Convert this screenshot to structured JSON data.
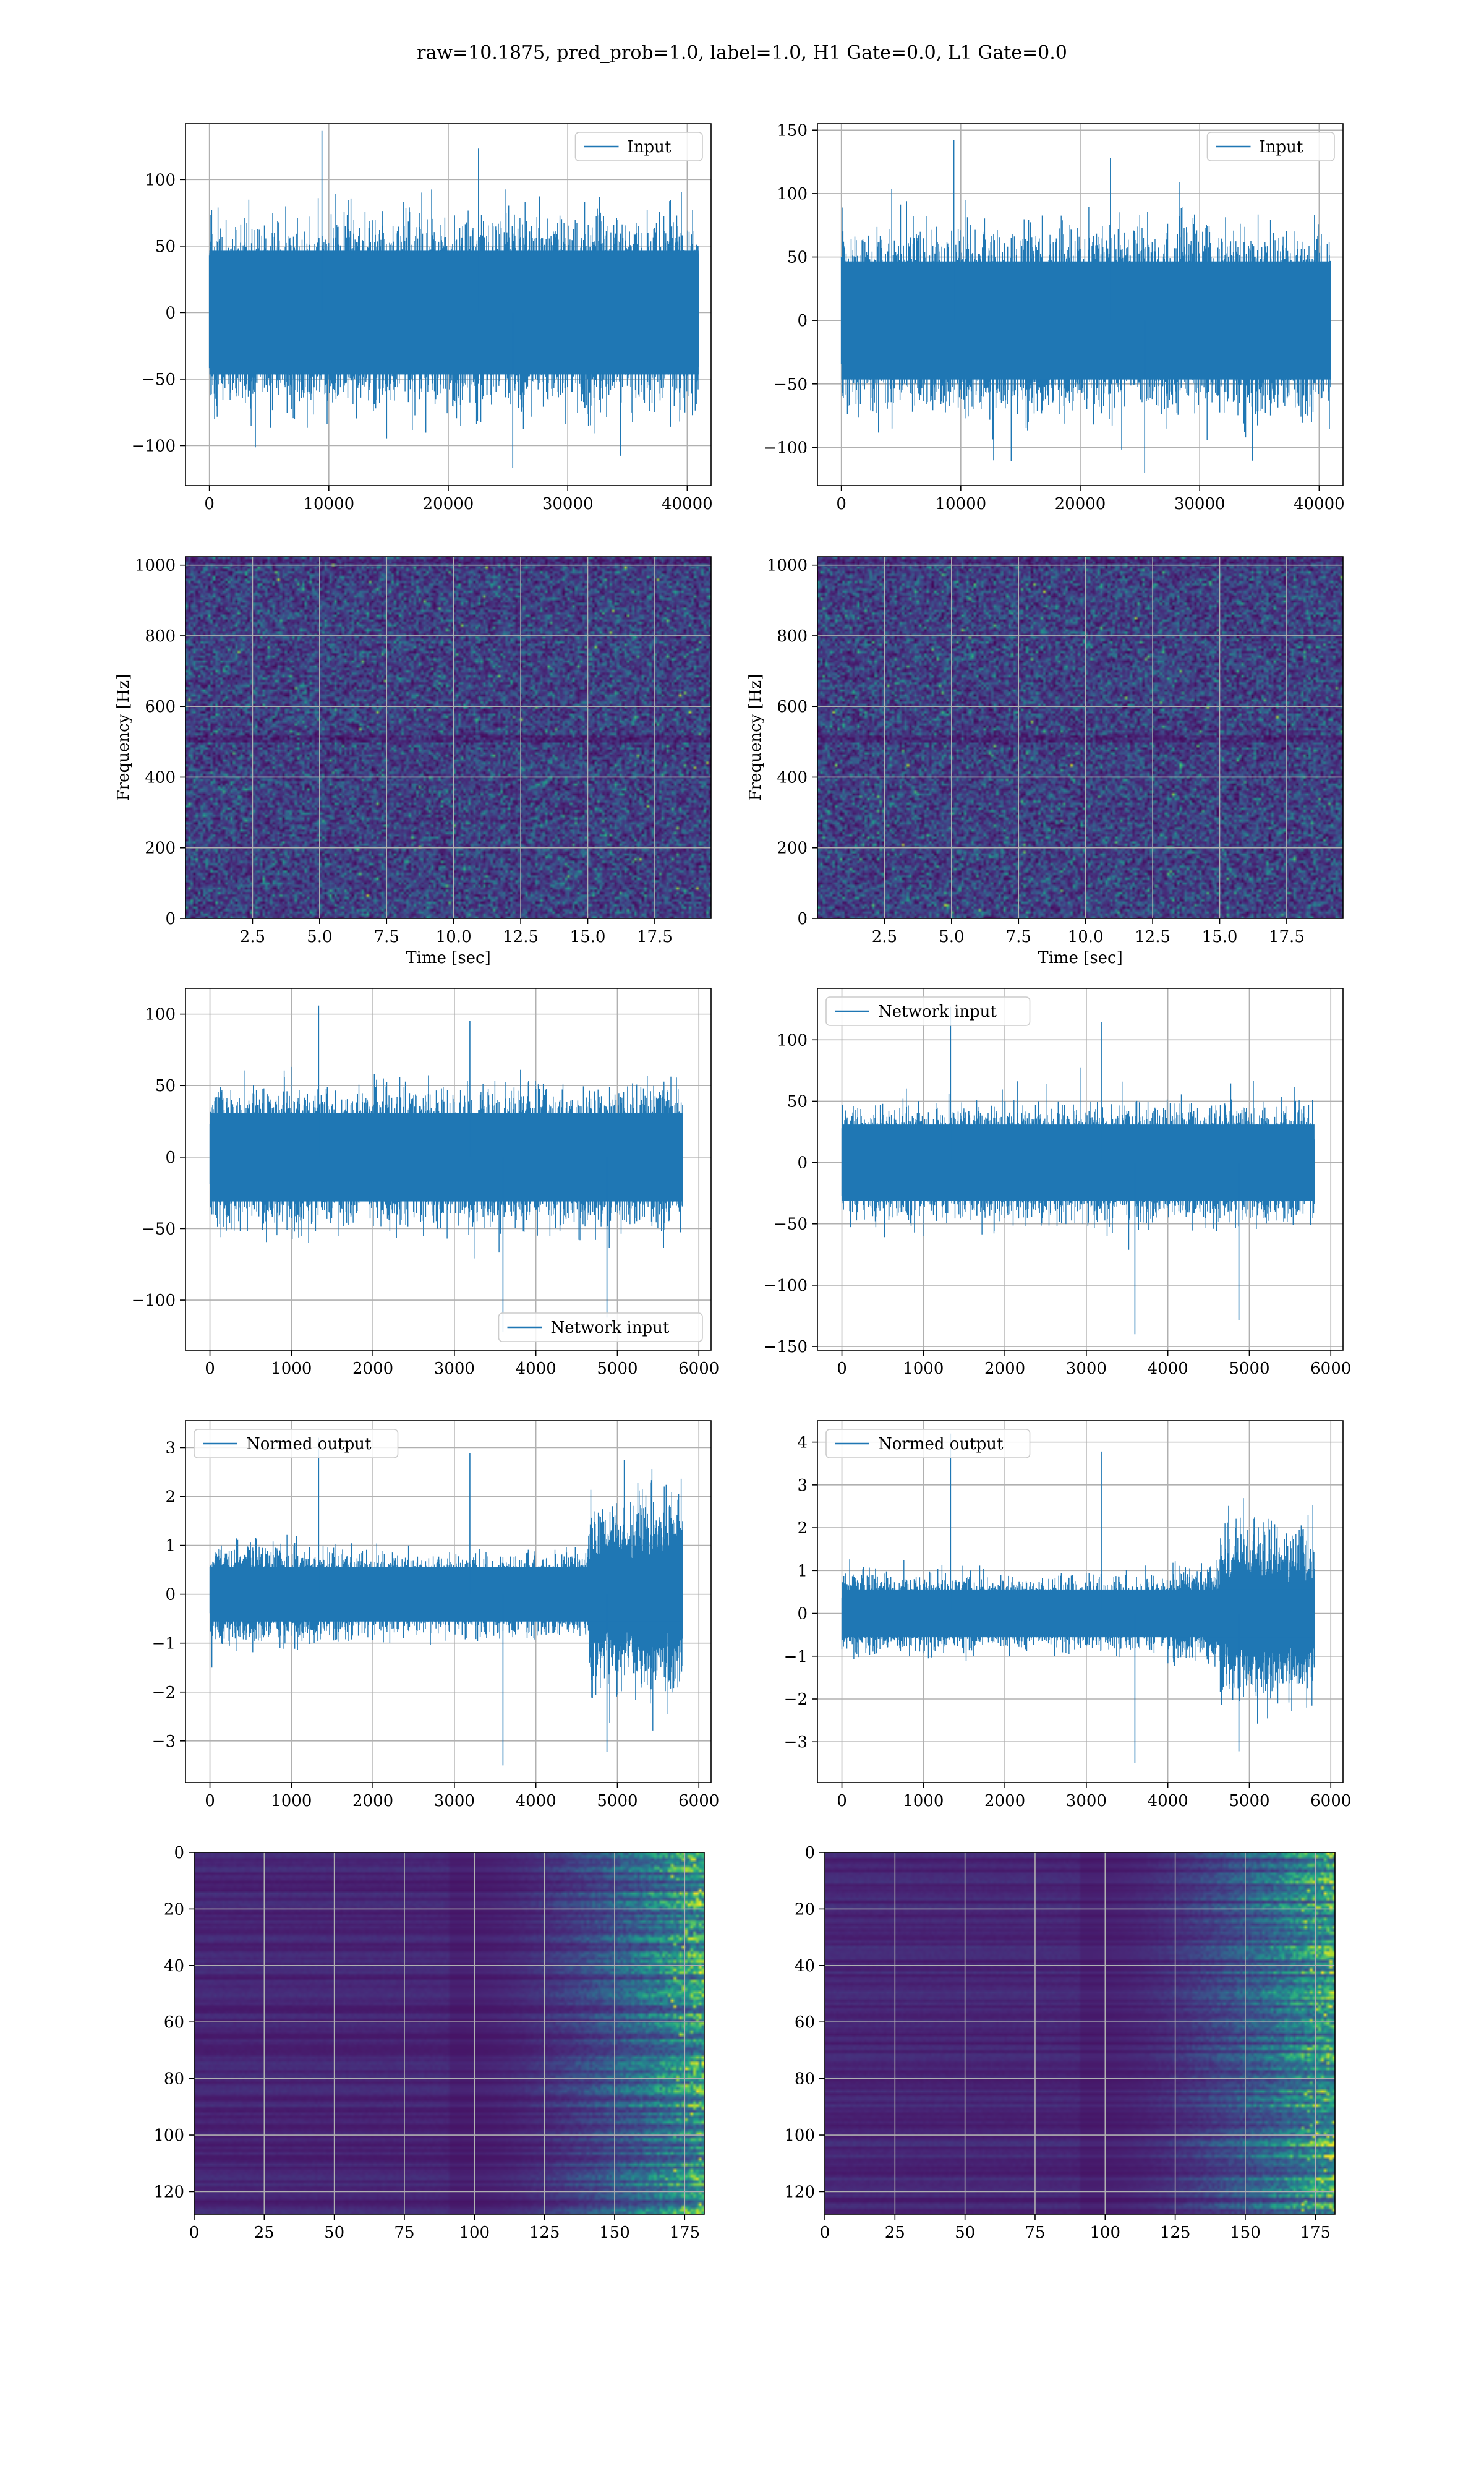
{
  "figure": {
    "title": "raw=10.1875, pred_prob=1.0, label=1.0, H1 Gate=0.0, L1 Gate=0.0",
    "colors": {
      "line": "#1f77b4",
      "viridis_low": "#440154",
      "viridis_mid": "#31688e",
      "viridis_hi": "#35b779",
      "viridis_top": "#fde725",
      "grid": "#b0b0b0"
    }
  },
  "chart_data": [
    {
      "id": "r1c1",
      "type": "line",
      "title": "",
      "xlabel": "",
      "ylabel": "",
      "legend": "Input",
      "legend_loc": "top-right",
      "xlim": [
        -2000,
        42000
      ],
      "ylim": [
        -130,
        142
      ],
      "xticks": [
        0,
        10000,
        20000,
        30000,
        40000
      ],
      "yticks": [
        -100,
        -50,
        0,
        50,
        100
      ],
      "signal": {
        "n": 40960,
        "x_max": 40960,
        "base": 75,
        "peak": 137,
        "trough": -117,
        "profile": [
          1,
          1,
          1,
          1,
          1,
          1,
          1,
          1,
          1,
          1
        ]
      }
    },
    {
      "id": "r1c2",
      "type": "line",
      "title": "",
      "xlabel": "",
      "ylabel": "",
      "legend": "Input",
      "legend_loc": "top-right",
      "xlim": [
        -2000,
        42000
      ],
      "ylim": [
        -130,
        155
      ],
      "xticks": [
        0,
        10000,
        20000,
        30000,
        40000
      ],
      "yticks": [
        -100,
        -50,
        0,
        50,
        100,
        150
      ],
      "signal": {
        "n": 40960,
        "x_max": 40960,
        "base": 75,
        "peak": 142,
        "trough": -120,
        "profile": [
          1,
          1,
          1,
          1,
          1,
          1,
          1,
          1,
          1,
          1
        ]
      }
    },
    {
      "id": "r2c1",
      "type": "heatmap",
      "title": "",
      "xlabel": "Time [sec]",
      "ylabel": "Frequency [Hz]",
      "xlim": [
        0,
        19.6
      ],
      "ylim": [
        0,
        1024
      ],
      "xticks": [
        2.5,
        5.0,
        7.5,
        10.0,
        12.5,
        15.0,
        17.5
      ],
      "yticks": [
        0,
        200,
        400,
        600,
        800,
        1000
      ],
      "tick_labels_x": [
        "2.5",
        "5.0",
        "7.5",
        "10.0",
        "12.5",
        "15.0",
        "17.5"
      ]
    },
    {
      "id": "r2c2",
      "type": "heatmap",
      "title": "",
      "xlabel": "Time [sec]",
      "ylabel": "Frequency [Hz]",
      "xlim": [
        0,
        19.6
      ],
      "ylim": [
        0,
        1024
      ],
      "xticks": [
        2.5,
        5.0,
        7.5,
        10.0,
        12.5,
        15.0,
        17.5
      ],
      "yticks": [
        0,
        200,
        400,
        600,
        800,
        1000
      ],
      "tick_labels_x": [
        "2.5",
        "5.0",
        "7.5",
        "10.0",
        "12.5",
        "15.0",
        "17.5"
      ]
    },
    {
      "id": "r3c1",
      "type": "line",
      "title": "",
      "xlabel": "",
      "ylabel": "",
      "legend": "Network input",
      "legend_loc": "bottom-right",
      "xlim": [
        -300,
        6150
      ],
      "ylim": [
        -135,
        118
      ],
      "xticks": [
        0,
        1000,
        2000,
        3000,
        4000,
        5000,
        6000
      ],
      "yticks": [
        -100,
        -50,
        0,
        50,
        100
      ],
      "signal": {
        "n": 5800,
        "x_max": 5800,
        "base": 50,
        "peak": 106,
        "trough": -122,
        "profile": [
          1,
          1,
          1,
          1,
          1,
          1,
          1,
          1,
          1,
          1
        ]
      }
    },
    {
      "id": "r3c2",
      "type": "line",
      "title": "",
      "xlabel": "",
      "ylabel": "",
      "legend": "Network input",
      "legend_loc": "top-left",
      "xlim": [
        -300,
        6150
      ],
      "ylim": [
        -153,
        142
      ],
      "xticks": [
        0,
        1000,
        2000,
        3000,
        4000,
        5000,
        6000
      ],
      "yticks": [
        -150,
        -100,
        -50,
        0,
        50,
        100
      ],
      "signal": {
        "n": 5800,
        "x_max": 5800,
        "base": 50,
        "peak": 127,
        "trough": -140,
        "profile": [
          1,
          1,
          1,
          1,
          1,
          1,
          1,
          1,
          1,
          1
        ]
      }
    },
    {
      "id": "r4c1",
      "type": "line",
      "title": "",
      "xlabel": "",
      "ylabel": "",
      "legend": "Normed output",
      "legend_loc": "top-left",
      "xlim": [
        -300,
        6150
      ],
      "ylim": [
        -3.85,
        3.55
      ],
      "xticks": [
        0,
        1000,
        2000,
        3000,
        4000,
        5000,
        6000
      ],
      "yticks": [
        -3,
        -2,
        -1,
        0,
        1,
        2,
        3
      ],
      "signal": {
        "n": 5800,
        "x_max": 5800,
        "base": 0.9,
        "peak": 3.2,
        "trough": -3.5,
        "profile": [
          1.2,
          1.15,
          1.05,
          0.95,
          0.9,
          0.9,
          0.95,
          1.0,
          2.2,
          2.4
        ]
      }
    },
    {
      "id": "r4c2",
      "type": "line",
      "title": "",
      "xlabel": "",
      "ylabel": "",
      "legend": "Normed output",
      "legend_loc": "top-left",
      "xlim": [
        -300,
        6150
      ],
      "ylim": [
        -3.95,
        4.5
      ],
      "xticks": [
        0,
        1000,
        2000,
        3000,
        4000,
        5000,
        6000
      ],
      "yticks": [
        -3,
        -2,
        -1,
        0,
        1,
        2,
        3,
        4
      ],
      "signal": {
        "n": 5800,
        "x_max": 5800,
        "base": 0.9,
        "peak": 4.2,
        "trough": -3.5,
        "profile": [
          1.1,
          1.05,
          1.0,
          0.95,
          0.95,
          0.95,
          1.0,
          1.3,
          2.3,
          2.3
        ]
      }
    },
    {
      "id": "r5c1",
      "type": "heatmap",
      "title": "",
      "xlabel": "",
      "ylabel": "",
      "xlim": [
        0,
        182
      ],
      "ylim": [
        128,
        0
      ],
      "inverted_y": true,
      "xticks": [
        0,
        25,
        50,
        75,
        100,
        125,
        150,
        175
      ],
      "yticks": [
        0,
        20,
        40,
        60,
        80,
        100,
        120
      ]
    },
    {
      "id": "r5c2",
      "type": "heatmap",
      "title": "",
      "xlabel": "",
      "ylabel": "",
      "xlim": [
        0,
        182
      ],
      "ylim": [
        128,
        0
      ],
      "inverted_y": true,
      "xticks": [
        0,
        25,
        50,
        75,
        100,
        125,
        150,
        175
      ],
      "yticks": [
        0,
        20,
        40,
        60,
        80,
        100,
        120
      ]
    }
  ]
}
